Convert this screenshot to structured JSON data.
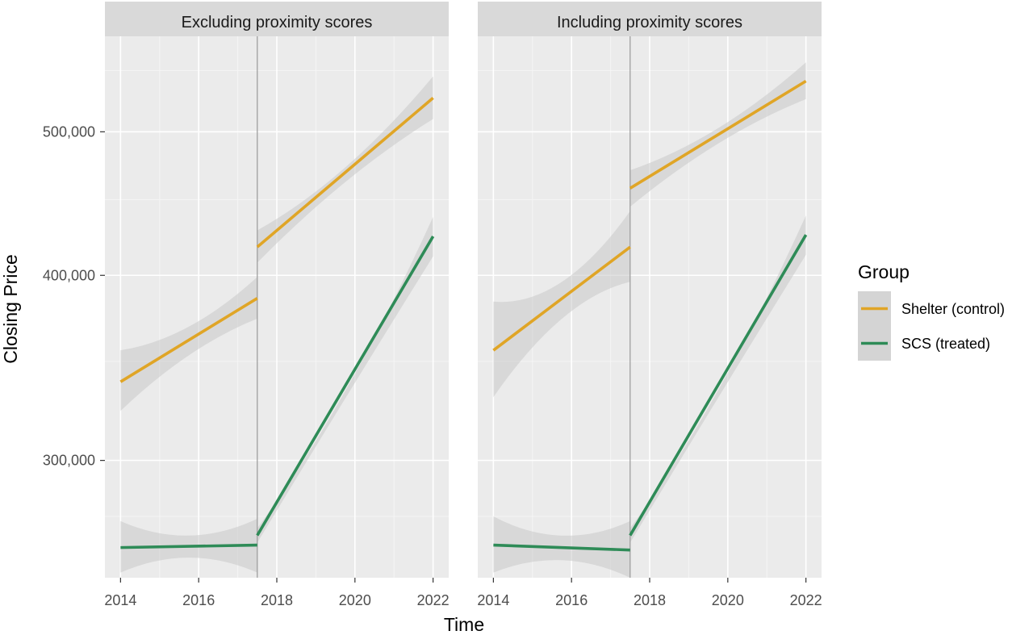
{
  "chart_data": {
    "type": "line",
    "xlabel": "Time",
    "ylabel": "Closing Price",
    "x_ticks": [
      2014,
      2016,
      2018,
      2020,
      2022
    ],
    "y_ticks": [
      {
        "value": 300000,
        "label": "300,000"
      },
      {
        "value": 400000,
        "label": "400,000"
      },
      {
        "value": 500000,
        "label": "500,000"
      }
    ],
    "y_scale": "log",
    "xlim": [
      2013.6,
      2022.4
    ],
    "ylim": [
      250000,
      580000
    ],
    "intervention_x": 2017.5,
    "grid": true,
    "legend": {
      "title": "Group",
      "position": "right",
      "entries": [
        {
          "label": "Shelter (control)",
          "color": "#E0A526"
        },
        {
          "label": "SCS (treated)",
          "color": "#2E8B57"
        }
      ]
    },
    "panels": [
      {
        "strip": "Excluding proximity scores",
        "series": [
          {
            "name": "Shelter (control)",
            "color": "#E0A526",
            "segments": [
              {
                "x": [
                  2014,
                  2017.5
                ],
                "y": [
                  339000,
                  386000
                ],
                "ci_low": [
                  324000,
                  374000
                ],
                "ci_high": [
                  356000,
                  399000
                ],
                "ci_mid_half_width": 8000
              },
              {
                "x": [
                  2017.5,
                  2022
                ],
                "y": [
                  418000,
                  527000
                ],
                "ci_low": [
                  408000,
                  510000
                ],
                "ci_high": [
                  429000,
                  545000
                ],
                "ci_mid_half_width": 5500
              }
            ]
          },
          {
            "name": "SCS (treated)",
            "color": "#2E8B57",
            "segments": [
              {
                "x": [
                  2014,
                  2017.5
                ],
                "y": [
                  262000,
                  263000
                ],
                "ci_low": [
                  252000,
                  252000
                ],
                "ci_high": [
                  273000,
                  274000
                ],
                "ci_mid_half_width": 4500
              },
              {
                "x": [
                  2017.5,
                  2022
                ],
                "y": [
                  267000,
                  425000
                ],
                "ci_low": [
                  264000,
                  412000
                ],
                "ci_high": [
                  270000,
                  438000
                ],
                "ci_mid_half_width": 2500
              }
            ]
          }
        ]
      },
      {
        "strip": "Including proximity scores",
        "series": [
          {
            "name": "Shelter (control)",
            "color": "#E0A526",
            "segments": [
              {
                "x": [
                  2014,
                  2017.5
                ],
                "y": [
                  356000,
                  418000
                ],
                "ci_low": [
                  331000,
                  396000
                ],
                "ci_high": [
                  384000,
                  442000
                ],
                "ci_mid_half_width": 11000
              },
              {
                "x": [
                  2017.5,
                  2022
                ],
                "y": [
                  458000,
                  541000
                ],
                "ci_low": [
                  445000,
                  526000
                ],
                "ci_high": [
                  471000,
                  557000
                ],
                "ci_mid_half_width": 6000
              }
            ]
          },
          {
            "name": "SCS (treated)",
            "color": "#2E8B57",
            "segments": [
              {
                "x": [
                  2014,
                  2017.5
                ],
                "y": [
                  263000,
                  261000
                ],
                "ci_low": [
                  252000,
                  250000
                ],
                "ci_high": [
                  275000,
                  273000
                ],
                "ci_mid_half_width": 5000
              },
              {
                "x": [
                  2017.5,
                  2022
                ],
                "y": [
                  267000,
                  426000
                ],
                "ci_low": [
                  264000,
                  413000
                ],
                "ci_high": [
                  270000,
                  439000
                ],
                "ci_mid_half_width": 2500
              }
            ]
          }
        ]
      }
    ]
  }
}
